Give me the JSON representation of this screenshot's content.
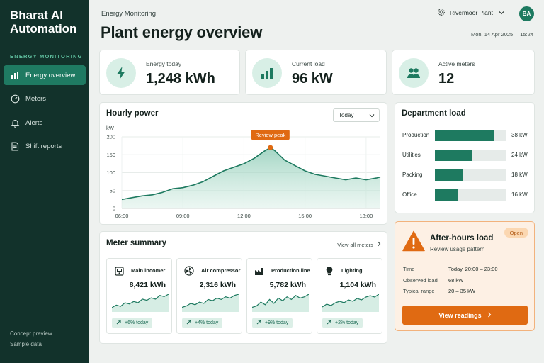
{
  "sidebar": {
    "brand": "Bharat AI Automation",
    "section_label": "ENERGY MONITORING",
    "items": [
      {
        "label": "Energy overview",
        "icon": "bar-chart-icon",
        "active": true
      },
      {
        "label": "Meters",
        "icon": "gauge-icon"
      },
      {
        "label": "Alerts",
        "icon": "bell-icon"
      },
      {
        "label": "Shift reports",
        "icon": "document-icon"
      }
    ],
    "footer_line1": "Concept preview",
    "footer_line2": "Sample data"
  },
  "header": {
    "breadcrumb": "Energy Monitoring",
    "title": "Plant energy overview",
    "plant": "Rivermoor Plant",
    "avatar_initials": "BA",
    "date": "Mon, 14 Apr 2025",
    "time": "15:24"
  },
  "kpis": [
    {
      "label": "Energy today",
      "value": "1,248 kWh",
      "icon": "lightning-icon"
    },
    {
      "label": "Current load",
      "value": "96 kW",
      "icon": "bar-chart-icon"
    },
    {
      "label": "Active meters",
      "value": "12",
      "icon": "users-icon"
    }
  ],
  "hourly_power": {
    "title": "Hourly power",
    "range": "Today",
    "annotation": "Review peak"
  },
  "chart_data": {
    "type": "area",
    "title": "Hourly power",
    "ylabel": "kW",
    "xlabel": "",
    "ylim": [
      0,
      200
    ],
    "yticks": [
      "0",
      "50",
      "100",
      "150",
      "200"
    ],
    "xticks": [
      "06:00",
      "09:00",
      "12:00",
      "15:00",
      "18:00"
    ],
    "x_hours": [
      6,
      6.5,
      7,
      7.5,
      8,
      8.5,
      9,
      9.5,
      10,
      10.5,
      11,
      11.5,
      12,
      12.5,
      13,
      13.3,
      13.5,
      14,
      14.5,
      15,
      15.5,
      16,
      16.5,
      17,
      17.5,
      18,
      18.5,
      18.7
    ],
    "y": [
      25,
      30,
      35,
      38,
      45,
      55,
      58,
      65,
      75,
      90,
      105,
      115,
      125,
      140,
      160,
      170,
      162,
      135,
      120,
      105,
      95,
      90,
      85,
      80,
      85,
      80,
      85,
      88
    ],
    "annotation": {
      "label": "Review peak",
      "x_hour": 13.3,
      "y": 170
    },
    "grid": true,
    "legend": "none"
  },
  "department_load": {
    "title": "Department load",
    "rows": [
      {
        "name": "Production",
        "value": "38 kW",
        "fraction": 0.84
      },
      {
        "name": "Utilities",
        "value": "24 kW",
        "fraction": 0.53
      },
      {
        "name": "Packing",
        "value": "18 kW",
        "fraction": 0.39
      },
      {
        "name": "Office",
        "value": "16 kW",
        "fraction": 0.33
      }
    ]
  },
  "meter_summary": {
    "title": "Meter summary",
    "view_all": "View all meters",
    "meters": [
      {
        "name": "Main incomer",
        "value": "8,421 kWh",
        "change": "+6% today",
        "icon": "meter-icon",
        "spark": [
          4,
          6,
          5,
          8,
          7,
          9,
          8,
          11,
          10,
          12,
          11,
          14,
          13,
          15
        ]
      },
      {
        "name": "Air compressor",
        "value": "2,316 kWh",
        "change": "+4% today",
        "icon": "fan-icon",
        "spark": [
          4,
          5,
          7,
          6,
          8,
          7,
          10,
          9,
          11,
          10,
          12,
          11,
          13,
          14
        ]
      },
      {
        "name": "Production line",
        "value": "5,782 kWh",
        "change": "+9% today",
        "icon": "factory-icon",
        "spark": [
          5,
          6,
          9,
          7,
          11,
          8,
          12,
          10,
          13,
          11,
          14,
          12,
          13,
          15
        ]
      },
      {
        "name": "Lighting",
        "value": "1,104 kWh",
        "change": "+2% today",
        "icon": "bulb-icon",
        "spark": [
          4,
          6,
          5,
          7,
          8,
          7,
          9,
          8,
          10,
          9,
          11,
          12,
          11,
          13
        ]
      }
    ]
  },
  "alert": {
    "title": "After-hours load",
    "subtitle": "Review usage pattern",
    "status": "Open",
    "rows": [
      {
        "label": "Time",
        "value": "Today, 20:00 – 23:00"
      },
      {
        "label": "Observed load",
        "value": "68 kW"
      },
      {
        "label": "Typical range",
        "value": "20 – 35 kW"
      }
    ],
    "cta": "View readings"
  },
  "colors": {
    "sidebar_bg": "#12322b",
    "accent": "#1e7a60",
    "alert_orange": "#e06a12",
    "page_bg": "#eef1ef"
  }
}
